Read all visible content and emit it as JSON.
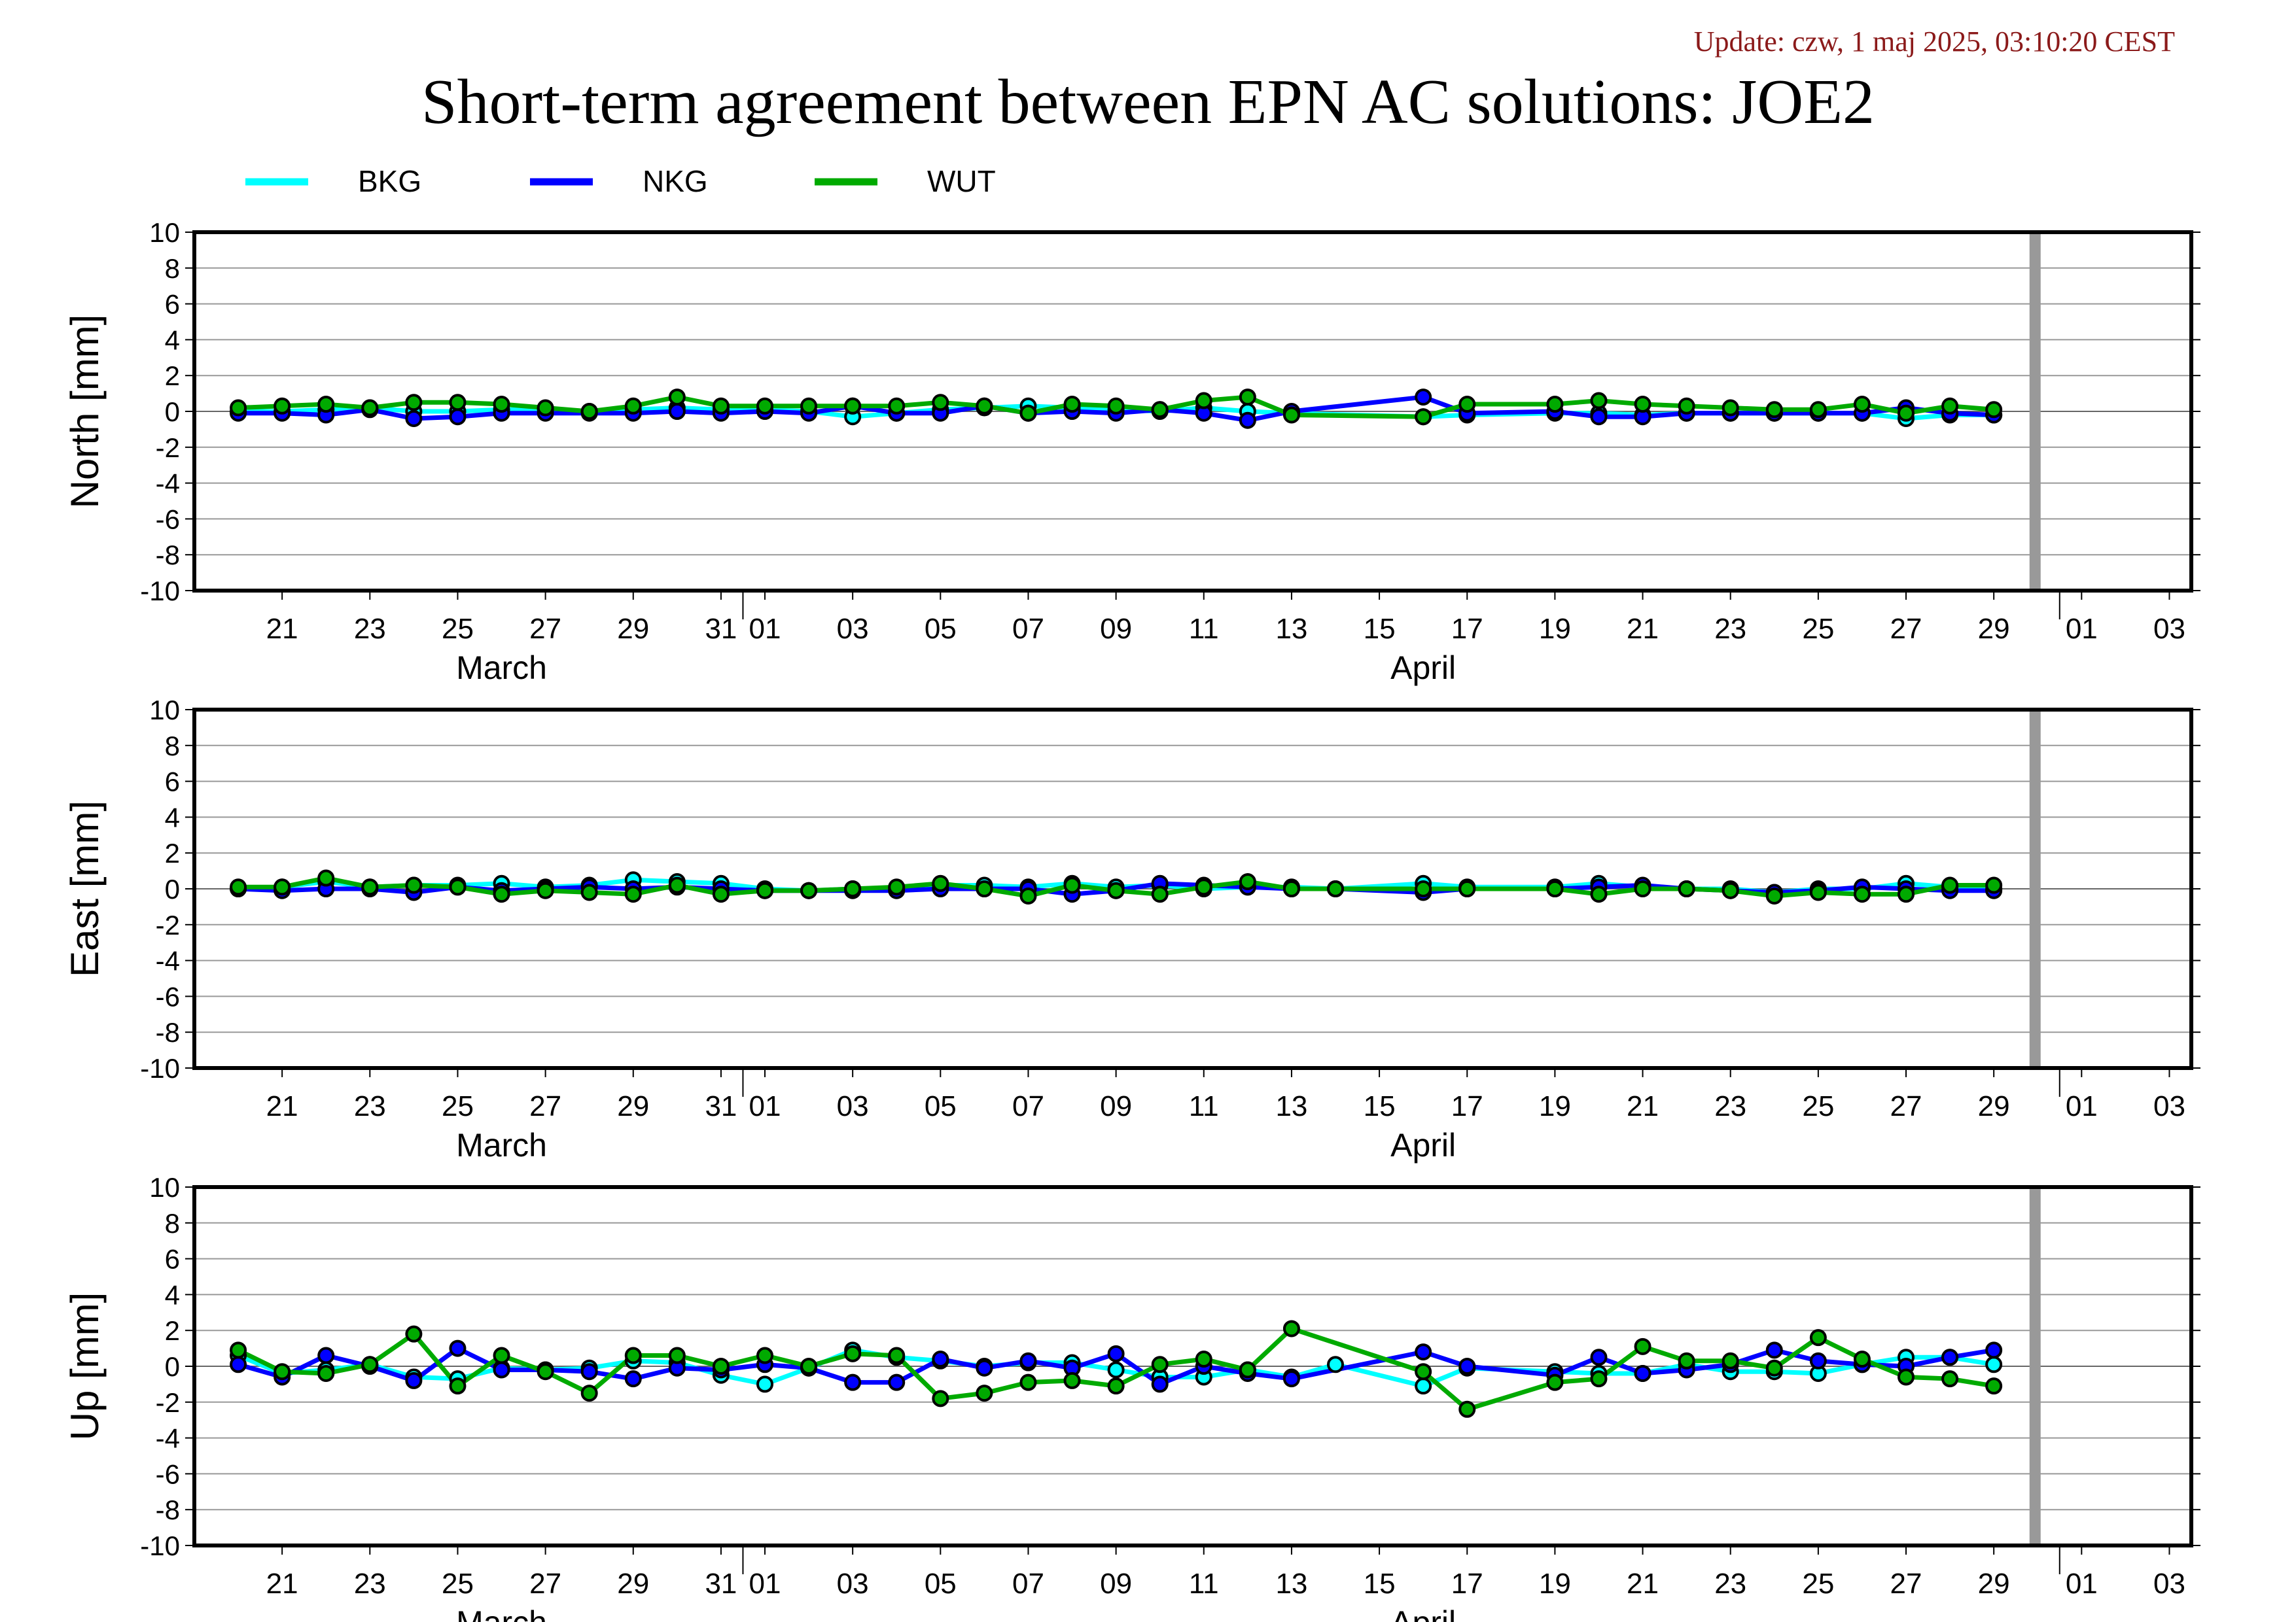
{
  "update": "Update: czw, 1 maj 2025, 03:10:20 CEST",
  "title": "Short-term agreement between EPN AC solutions: JOE2",
  "legend": [
    {
      "name": "BKG",
      "color": "#00ffff"
    },
    {
      "name": "NKG",
      "color": "#0000ff"
    },
    {
      "name": "WUT",
      "color": "#00aa00"
    }
  ],
  "chart_data": {
    "type": "line",
    "x_unit": "day of 2025",
    "x_range": [
      "2025-03-19",
      "2025-05-03"
    ],
    "x_ticks": [
      "21",
      "23",
      "25",
      "27",
      "29",
      "31",
      "01",
      "03",
      "05",
      "07",
      "09",
      "11",
      "13",
      "15",
      "17",
      "19",
      "21",
      "23",
      "25",
      "27",
      "29",
      "01",
      "03"
    ],
    "month_labels": [
      "March",
      "April"
    ],
    "ylim": [
      -10,
      10
    ],
    "y_ticks": [
      -10,
      -8,
      -6,
      -4,
      -2,
      0,
      2,
      4,
      6,
      8,
      10
    ],
    "marker_line_date": "2025-04-30",
    "dates": [
      "2025-03-20",
      "2025-03-21",
      "2025-03-22",
      "2025-03-23",
      "2025-03-24",
      "2025-03-25",
      "2025-03-26",
      "2025-03-27",
      "2025-03-28",
      "2025-03-29",
      "2025-03-30",
      "2025-03-31",
      "2025-04-01",
      "2025-04-02",
      "2025-04-03",
      "2025-04-04",
      "2025-04-05",
      "2025-04-06",
      "2025-04-07",
      "2025-04-08",
      "2025-04-09",
      "2025-04-10",
      "2025-04-11",
      "2025-04-12",
      "2025-04-13",
      "2025-04-14",
      "2025-04-15",
      "2025-04-16",
      "2025-04-17",
      "2025-04-18",
      "2025-04-19",
      "2025-04-20",
      "2025-04-21",
      "2025-04-22",
      "2025-04-23",
      "2025-04-24",
      "2025-04-25",
      "2025-04-26",
      "2025-04-27",
      "2025-04-28",
      "2025-04-29"
    ],
    "panels": [
      {
        "ylabel": "North [mm]",
        "series": [
          {
            "name": "BKG",
            "values": [
              0.0,
              0.0,
              0.1,
              0.2,
              0.0,
              0.0,
              0.1,
              0.1,
              0.0,
              0.1,
              0.2,
              0.1,
              0.1,
              0.0,
              -0.3,
              -0.1,
              0.1,
              0.2,
              0.3,
              0.2,
              0.1,
              0.0,
              0.2,
              0.0,
              -0.1,
              null,
              null,
              -0.3,
              -0.2,
              null,
              -0.1,
              -0.1,
              -0.2,
              -0.1,
              -0.1,
              -0.1,
              -0.1,
              -0.1,
              -0.4,
              -0.2,
              -0.2
            ]
          },
          {
            "name": "NKG",
            "values": [
              -0.1,
              -0.1,
              -0.2,
              0.1,
              -0.4,
              -0.3,
              -0.1,
              -0.1,
              -0.1,
              -0.1,
              0.0,
              -0.1,
              0.0,
              -0.1,
              0.3,
              -0.1,
              -0.1,
              0.3,
              -0.1,
              0.0,
              -0.1,
              0.1,
              -0.1,
              -0.5,
              0.0,
              null,
              null,
              0.8,
              -0.1,
              null,
              0.0,
              -0.3,
              -0.3,
              -0.1,
              -0.1,
              -0.1,
              -0.1,
              -0.1,
              0.2,
              -0.1,
              -0.2
            ]
          },
          {
            "name": "WUT",
            "values": [
              0.2,
              0.3,
              0.4,
              0.2,
              0.5,
              0.5,
              0.4,
              0.2,
              0.0,
              0.3,
              0.8,
              0.3,
              0.3,
              0.3,
              0.3,
              0.3,
              0.5,
              0.3,
              -0.1,
              0.4,
              0.3,
              0.1,
              0.6,
              0.8,
              -0.2,
              null,
              null,
              -0.3,
              0.4,
              null,
              0.4,
              0.6,
              0.4,
              0.3,
              0.2,
              0.1,
              0.1,
              0.4,
              -0.1,
              0.3,
              0.1
            ]
          }
        ]
      },
      {
        "ylabel": "East [mm]",
        "series": [
          {
            "name": "BKG",
            "values": [
              0.0,
              0.1,
              0.4,
              0.1,
              0.2,
              0.2,
              0.3,
              0.1,
              0.2,
              0.5,
              0.4,
              0.3,
              0.0,
              -0.1,
              0.0,
              0.0,
              0.2,
              0.2,
              0.1,
              0.3,
              0.1,
              0.2,
              0.0,
              0.1,
              0.1,
              0.0,
              null,
              0.3,
              0.1,
              null,
              0.1,
              0.3,
              0.1,
              0.0,
              0.0,
              -0.2,
              0.0,
              0.0,
              0.3,
              0.1,
              0.0
            ]
          },
          {
            "name": "NKG",
            "values": [
              0.0,
              -0.1,
              0.0,
              0.0,
              -0.2,
              0.1,
              -0.1,
              0.0,
              0.1,
              0.0,
              0.1,
              0.0,
              -0.1,
              -0.1,
              -0.1,
              -0.1,
              0.0,
              0.0,
              0.0,
              -0.3,
              -0.1,
              0.3,
              0.2,
              0.1,
              0.0,
              0.0,
              null,
              -0.2,
              0.0,
              null,
              0.0,
              0.1,
              0.2,
              0.0,
              -0.1,
              -0.2,
              -0.1,
              0.1,
              0.0,
              -0.1,
              -0.1
            ]
          },
          {
            "name": "WUT",
            "values": [
              0.1,
              0.1,
              0.6,
              0.1,
              0.2,
              0.1,
              -0.3,
              -0.1,
              -0.2,
              -0.3,
              0.2,
              -0.3,
              -0.1,
              -0.1,
              0.0,
              0.1,
              0.3,
              0.0,
              -0.4,
              0.2,
              -0.1,
              -0.3,
              0.1,
              0.4,
              0.0,
              0.0,
              null,
              0.0,
              0.0,
              null,
              0.0,
              -0.3,
              0.0,
              0.0,
              -0.1,
              -0.4,
              -0.2,
              -0.3,
              -0.3,
              0.2,
              0.2
            ]
          }
        ]
      },
      {
        "ylabel": "Up [mm]",
        "series": [
          {
            "name": "BKG",
            "values": [
              0.6,
              -0.4,
              -0.2,
              0.1,
              -0.6,
              -0.7,
              -0.1,
              -0.2,
              -0.1,
              0.3,
              0.2,
              -0.5,
              -1.0,
              -0.1,
              0.9,
              0.5,
              0.3,
              0.0,
              0.2,
              0.2,
              -0.2,
              -0.6,
              -0.6,
              -0.2,
              -0.6,
              0.1,
              null,
              -1.1,
              -0.1,
              null,
              -0.3,
              -0.4,
              -0.4,
              0.1,
              -0.3,
              -0.3,
              -0.4,
              0.1,
              0.5,
              0.5,
              0.1
            ]
          },
          {
            "name": "NKG",
            "values": [
              0.1,
              -0.6,
              0.6,
              0.0,
              -0.8,
              1.0,
              -0.2,
              -0.2,
              -0.3,
              -0.7,
              -0.1,
              -0.2,
              0.1,
              -0.1,
              -0.9,
              -0.9,
              0.4,
              -0.1,
              0.3,
              -0.1,
              0.7,
              -1.0,
              0.0,
              -0.4,
              -0.7,
              null,
              null,
              0.8,
              0.0,
              null,
              -0.5,
              0.5,
              -0.4,
              -0.2,
              0.1,
              0.9,
              0.3,
              0.1,
              0.0,
              0.5,
              0.9
            ]
          },
          {
            "name": "WUT",
            "values": [
              0.9,
              -0.3,
              -0.4,
              0.1,
              1.8,
              -1.1,
              0.6,
              -0.3,
              -1.5,
              0.6,
              0.6,
              0.0,
              0.6,
              0.0,
              0.7,
              0.6,
              -1.8,
              -1.5,
              -0.9,
              -0.8,
              -1.1,
              0.1,
              0.4,
              -0.2,
              2.1,
              null,
              null,
              -0.3,
              -2.4,
              null,
              -0.9,
              -0.7,
              1.1,
              0.3,
              0.3,
              -0.1,
              1.6,
              0.4,
              -0.6,
              -0.7,
              -1.1
            ]
          }
        ]
      }
    ]
  }
}
